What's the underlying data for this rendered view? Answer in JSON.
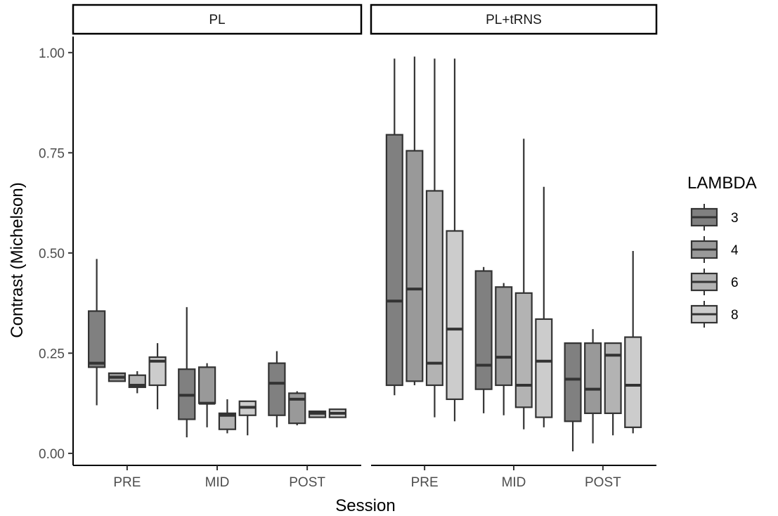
{
  "chart_data": {
    "type": "boxplot",
    "xlabel": "Session",
    "ylabel": "Contrast (Michelson)",
    "ylim": [
      -0.03,
      1.04
    ],
    "y_ticks": [
      0.0,
      0.25,
      0.5,
      0.75,
      1.0
    ],
    "y_tick_labels": [
      "0.00",
      "0.25",
      "0.50",
      "0.75",
      "1.00"
    ],
    "categories": [
      "PRE",
      "MID",
      "POST"
    ],
    "grid": false,
    "legend": {
      "title": "LAMBDA",
      "position": "right",
      "entries": [
        {
          "label": "3",
          "color": "#808080"
        },
        {
          "label": "4",
          "color": "#999999"
        },
        {
          "label": "6",
          "color": "#b3b3b3"
        },
        {
          "label": "8",
          "color": "#cccccc"
        }
      ]
    },
    "panels": [
      {
        "name": "PL",
        "groups": [
          {
            "session": "PRE",
            "boxes": [
              {
                "lambda": "3",
                "min": 0.12,
                "q1": 0.215,
                "median": 0.225,
                "q3": 0.355,
                "max": 0.485
              },
              {
                "lambda": "4",
                "min": 0.18,
                "q1": 0.18,
                "median": 0.19,
                "q3": 0.2,
                "max": 0.2
              },
              {
                "lambda": "6",
                "min": 0.15,
                "q1": 0.165,
                "median": 0.17,
                "q3": 0.195,
                "max": 0.205
              },
              {
                "lambda": "8",
                "min": 0.11,
                "q1": 0.17,
                "median": 0.23,
                "q3": 0.24,
                "max": 0.275
              }
            ]
          },
          {
            "session": "MID",
            "boxes": [
              {
                "lambda": "3",
                "min": 0.04,
                "q1": 0.085,
                "median": 0.145,
                "q3": 0.21,
                "max": 0.365
              },
              {
                "lambda": "4",
                "min": 0.065,
                "q1": 0.125,
                "median": 0.125,
                "q3": 0.215,
                "max": 0.225
              },
              {
                "lambda": "6",
                "min": 0.05,
                "q1": 0.06,
                "median": 0.095,
                "q3": 0.1,
                "max": 0.135
              },
              {
                "lambda": "8",
                "min": 0.045,
                "q1": 0.095,
                "median": 0.115,
                "q3": 0.13,
                "max": 0.13
              }
            ]
          },
          {
            "session": "POST",
            "boxes": [
              {
                "lambda": "3",
                "min": 0.065,
                "q1": 0.095,
                "median": 0.175,
                "q3": 0.225,
                "max": 0.255
              },
              {
                "lambda": "4",
                "min": 0.07,
                "q1": 0.075,
                "median": 0.135,
                "q3": 0.15,
                "max": 0.155
              },
              {
                "lambda": "6",
                "min": 0.09,
                "q1": 0.09,
                "median": 0.1,
                "q3": 0.105,
                "max": 0.105
              },
              {
                "lambda": "8",
                "min": 0.09,
                "q1": 0.09,
                "median": 0.1,
                "q3": 0.11,
                "max": 0.11
              }
            ]
          }
        ]
      },
      {
        "name": "PL+tRNS",
        "groups": [
          {
            "session": "PRE",
            "boxes": [
              {
                "lambda": "3",
                "min": 0.145,
                "q1": 0.17,
                "median": 0.38,
                "q3": 0.795,
                "max": 0.985
              },
              {
                "lambda": "4",
                "min": 0.17,
                "q1": 0.18,
                "median": 0.41,
                "q3": 0.755,
                "max": 0.99
              },
              {
                "lambda": "6",
                "min": 0.09,
                "q1": 0.17,
                "median": 0.225,
                "q3": 0.655,
                "max": 0.985
              },
              {
                "lambda": "8",
                "min": 0.08,
                "q1": 0.135,
                "median": 0.31,
                "q3": 0.555,
                "max": 0.985
              }
            ]
          },
          {
            "session": "MID",
            "boxes": [
              {
                "lambda": "3",
                "min": 0.1,
                "q1": 0.16,
                "median": 0.22,
                "q3": 0.455,
                "max": 0.465
              },
              {
                "lambda": "4",
                "min": 0.095,
                "q1": 0.17,
                "median": 0.24,
                "q3": 0.415,
                "max": 0.425
              },
              {
                "lambda": "6",
                "min": 0.06,
                "q1": 0.115,
                "median": 0.17,
                "q3": 0.4,
                "max": 0.785
              },
              {
                "lambda": "8",
                "min": 0.065,
                "q1": 0.09,
                "median": 0.23,
                "q3": 0.335,
                "max": 0.665
              }
            ]
          },
          {
            "session": "POST",
            "boxes": [
              {
                "lambda": "3",
                "min": 0.005,
                "q1": 0.08,
                "median": 0.185,
                "q3": 0.275,
                "max": 0.275
              },
              {
                "lambda": "4",
                "min": 0.025,
                "q1": 0.1,
                "median": 0.16,
                "q3": 0.275,
                "max": 0.31
              },
              {
                "lambda": "6",
                "min": 0.045,
                "q1": 0.1,
                "median": 0.245,
                "q3": 0.275,
                "max": 0.275
              },
              {
                "lambda": "8",
                "min": 0.05,
                "q1": 0.065,
                "median": 0.17,
                "q3": 0.29,
                "max": 0.505
              }
            ]
          }
        ]
      }
    ]
  }
}
